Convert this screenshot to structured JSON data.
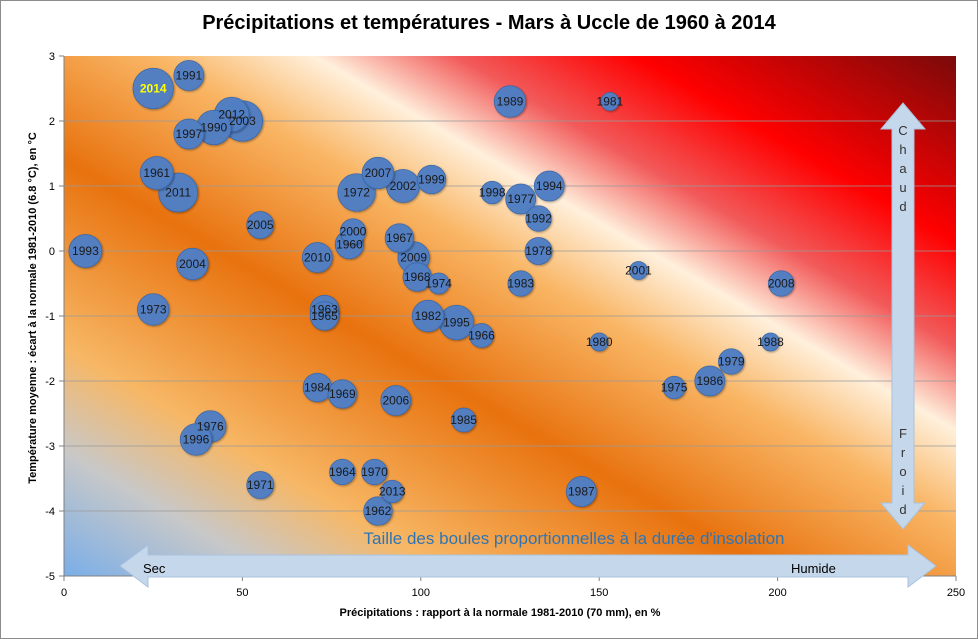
{
  "chart_data": {
    "type": "scatter",
    "title": "Précipitations et températures - Mars à Uccle de 1960 à 2014",
    "xlabel": "Précipitations : rapport à la normale 1981-2010 (70 mm), en %",
    "ylabel": "Température moyenne : écart à la normale 1981-2010 (6.8 °C), en °C",
    "xlim": [
      0,
      250
    ],
    "ylim": [
      -5,
      3
    ],
    "x_ticks": [
      "0",
      "50",
      "100",
      "150",
      "200",
      "250"
    ],
    "y_ticks": [
      "3",
      "2",
      "1",
      "0",
      "-1",
      "-2",
      "-3",
      "-4",
      "-5"
    ],
    "grid": "horizontal",
    "bubble_color": "#4f7fc4",
    "highlight_color": "#ffff00",
    "background": "gradient from blue (bottom-left, dry and cold) through orange to red and dark red (top-right, wet and hot)",
    "annotations": {
      "size_note": "Taille des boules proportionnelles  à la durée d'insolation",
      "dry": "Sec",
      "wet": "Humide",
      "hot": "Chaud",
      "cold": "Froid"
    },
    "points": [
      {
        "label": "2014",
        "x": 25,
        "y": 2.5,
        "size": 1.35,
        "highlight": true
      },
      {
        "label": "1991",
        "x": 35,
        "y": 2.7,
        "size": 1.0
      },
      {
        "label": "2012",
        "x": 47,
        "y": 2.1,
        "size": 1.15
      },
      {
        "label": "2003",
        "x": 50,
        "y": 2.0,
        "size": 1.35
      },
      {
        "label": "1990",
        "x": 42,
        "y": 1.9,
        "size": 1.15
      },
      {
        "label": "1997",
        "x": 35,
        "y": 1.8,
        "size": 1.0
      },
      {
        "label": "1989",
        "x": 125,
        "y": 2.3,
        "size": 1.05
      },
      {
        "label": "1981",
        "x": 153,
        "y": 2.3,
        "size": 0.6
      },
      {
        "label": "1961",
        "x": 26,
        "y": 1.2,
        "size": 1.1
      },
      {
        "label": "2011",
        "x": 32,
        "y": 0.9,
        "size": 1.3
      },
      {
        "label": "2007",
        "x": 88,
        "y": 1.2,
        "size": 1.05
      },
      {
        "label": "1972",
        "x": 82,
        "y": 0.9,
        "size": 1.25
      },
      {
        "label": "2002",
        "x": 95,
        "y": 1.0,
        "size": 1.1
      },
      {
        "label": "1999",
        "x": 103,
        "y": 1.1,
        "size": 0.95
      },
      {
        "label": "1998",
        "x": 120,
        "y": 0.9,
        "size": 0.75
      },
      {
        "label": "1977",
        "x": 128,
        "y": 0.8,
        "size": 1.0
      },
      {
        "label": "1994",
        "x": 136,
        "y": 1.0,
        "size": 1.0
      },
      {
        "label": "1992",
        "x": 133,
        "y": 0.5,
        "size": 0.85
      },
      {
        "label": "2005",
        "x": 55,
        "y": 0.4,
        "size": 0.9
      },
      {
        "label": "2000",
        "x": 81,
        "y": 0.3,
        "size": 0.85
      },
      {
        "label": "1960",
        "x": 80,
        "y": 0.1,
        "size": 0.95
      },
      {
        "label": "1967",
        "x": 94,
        "y": 0.2,
        "size": 0.95
      },
      {
        "label": "1993",
        "x": 6,
        "y": 0.0,
        "size": 1.1
      },
      {
        "label": "2004",
        "x": 36,
        "y": -0.2,
        "size": 1.05
      },
      {
        "label": "2010",
        "x": 71,
        "y": -0.1,
        "size": 1.0
      },
      {
        "label": "2009",
        "x": 98,
        "y": -0.1,
        "size": 1.05
      },
      {
        "label": "1978",
        "x": 133,
        "y": 0.0,
        "size": 0.9
      },
      {
        "label": "2001",
        "x": 161,
        "y": -0.3,
        "size": 0.6
      },
      {
        "label": "2008",
        "x": 201,
        "y": -0.5,
        "size": 0.85
      },
      {
        "label": "1968",
        "x": 99,
        "y": -0.4,
        "size": 0.95
      },
      {
        "label": "1974",
        "x": 105,
        "y": -0.5,
        "size": 0.7
      },
      {
        "label": "1983",
        "x": 128,
        "y": -0.5,
        "size": 0.85
      },
      {
        "label": "1973",
        "x": 25,
        "y": -0.9,
        "size": 1.05
      },
      {
        "label": "1963",
        "x": 73,
        "y": -0.9,
        "size": 0.95
      },
      {
        "label": "1965",
        "x": 73,
        "y": -1.0,
        "size": 0.95
      },
      {
        "label": "1982",
        "x": 102,
        "y": -1.0,
        "size": 1.05
      },
      {
        "label": "1995",
        "x": 110,
        "y": -1.1,
        "size": 1.15
      },
      {
        "label": "1966",
        "x": 117,
        "y": -1.3,
        "size": 0.8
      },
      {
        "label": "1980",
        "x": 150,
        "y": -1.4,
        "size": 0.6
      },
      {
        "label": "1988",
        "x": 198,
        "y": -1.4,
        "size": 0.6
      },
      {
        "label": "1979",
        "x": 187,
        "y": -1.7,
        "size": 0.85
      },
      {
        "label": "1975",
        "x": 171,
        "y": -2.1,
        "size": 0.75
      },
      {
        "label": "1986",
        "x": 181,
        "y": -2.0,
        "size": 1.0
      },
      {
        "label": "1984",
        "x": 71,
        "y": -2.1,
        "size": 0.95
      },
      {
        "label": "1969",
        "x": 78,
        "y": -2.2,
        "size": 0.95
      },
      {
        "label": "2006",
        "x": 93,
        "y": -2.3,
        "size": 1.0
      },
      {
        "label": "1985",
        "x": 112,
        "y": -2.6,
        "size": 0.8
      },
      {
        "label": "1976",
        "x": 41,
        "y": -2.7,
        "size": 1.05
      },
      {
        "label": "1996",
        "x": 37,
        "y": -2.9,
        "size": 1.05
      },
      {
        "label": "1964",
        "x": 78,
        "y": -3.4,
        "size": 0.85
      },
      {
        "label": "1970",
        "x": 87,
        "y": -3.4,
        "size": 0.85
      },
      {
        "label": "1971",
        "x": 55,
        "y": -3.6,
        "size": 0.9
      },
      {
        "label": "2013",
        "x": 92,
        "y": -3.7,
        "size": 0.75
      },
      {
        "label": "1987",
        "x": 145,
        "y": -3.7,
        "size": 1.0
      },
      {
        "label": "1962",
        "x": 88,
        "y": -4.0,
        "size": 0.95
      }
    ]
  }
}
